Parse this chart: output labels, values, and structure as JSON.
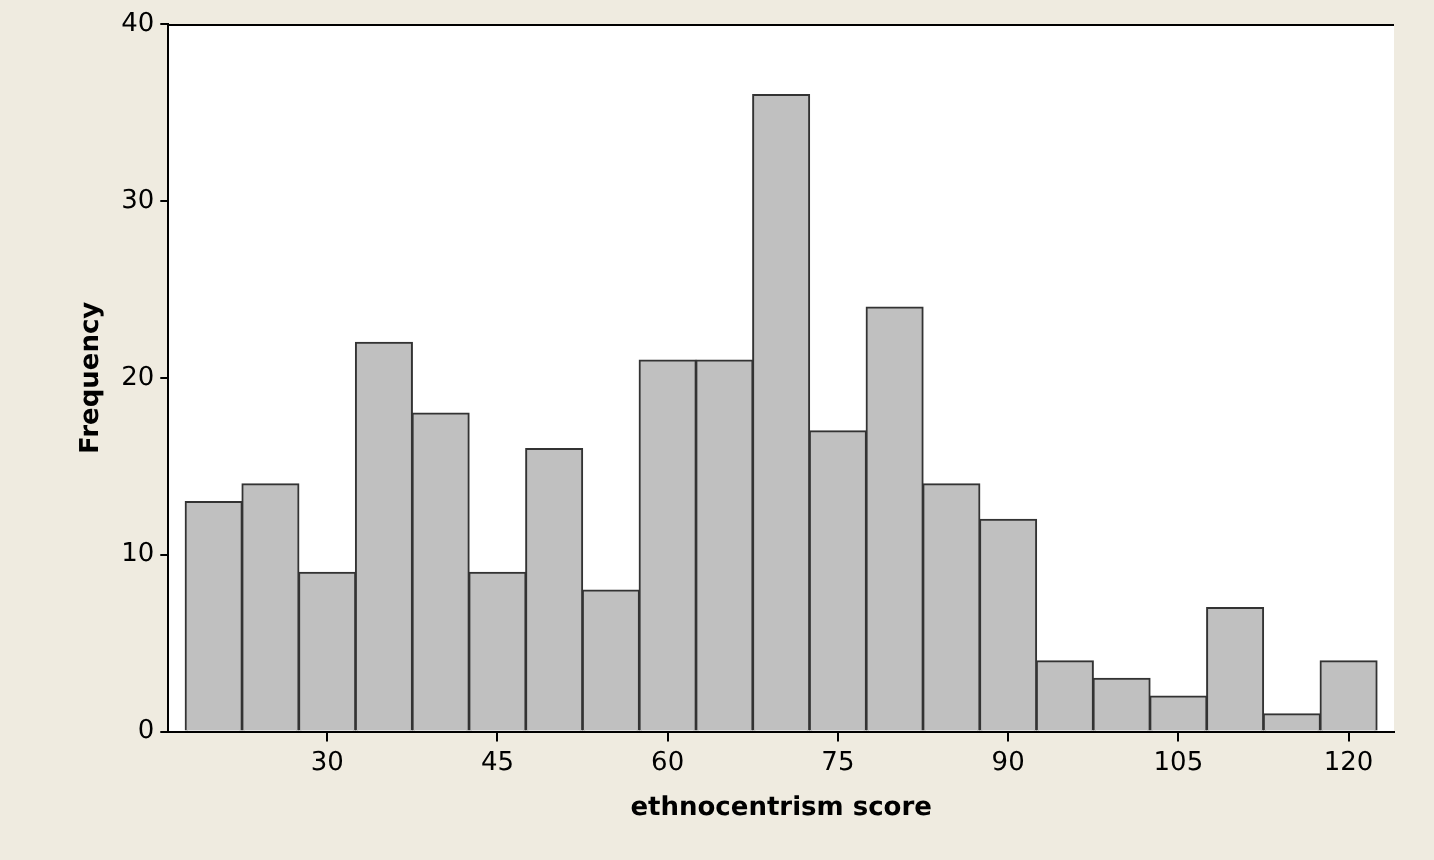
{
  "chart_data": {
    "type": "histogram",
    "xlabel": "ethnocentrism score",
    "ylabel": "Frequency",
    "bins": [
      17.5,
      22.5,
      27.5,
      32.5,
      37.5,
      42.5,
      47.5,
      52.5,
      57.5,
      62.5,
      67.5,
      72.5,
      77.5,
      82.5,
      87.5,
      92.5,
      97.5,
      102.5,
      107.5,
      112.5,
      117.5,
      122.5
    ],
    "values": [
      13,
      14,
      9,
      22,
      18,
      9,
      16,
      8,
      21,
      21,
      36,
      17,
      24,
      14,
      12,
      4,
      3,
      2,
      7,
      1,
      4
    ],
    "color": "#c0c0c0",
    "xlim": [
      16,
      124
    ],
    "xticks": [
      30,
      45,
      60,
      75,
      90,
      105,
      120
    ],
    "ylim": [
      0,
      40
    ],
    "yticks": [
      0,
      10,
      20,
      30,
      40
    ],
    "grid": false,
    "legend": false
  }
}
